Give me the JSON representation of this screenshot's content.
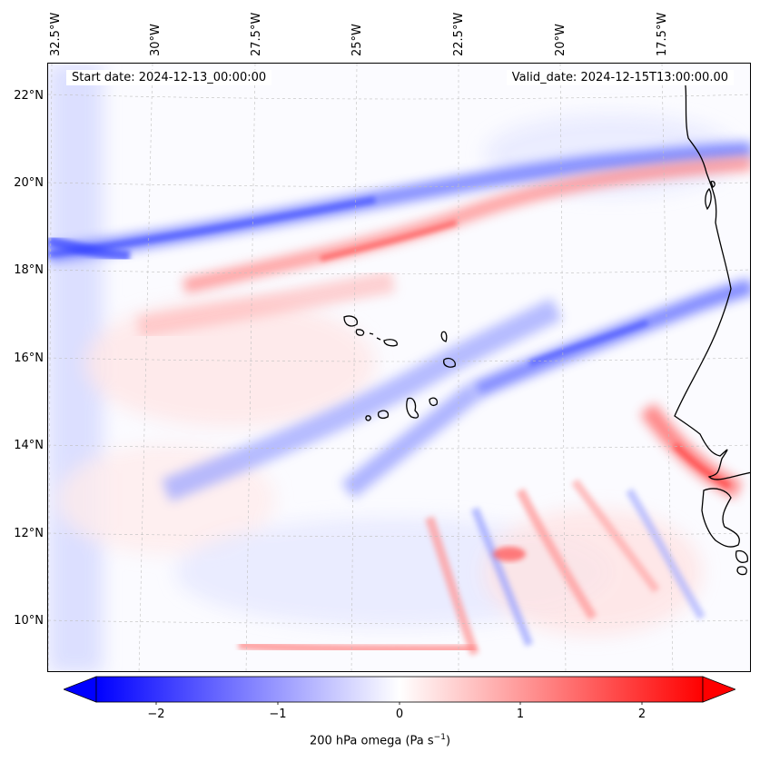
{
  "map": {
    "start_label": "Start date: 2024-12-13_00:00:00",
    "valid_label": "Valid_date: 2024-12-15T13:00:00.00",
    "lon_labels": [
      "32.5°W",
      "30°W",
      "27.5°W",
      "25°W",
      "22.5°W",
      "20°W",
      "17.5°W"
    ],
    "lat_labels": [
      "22°N",
      "20°N",
      "18°N",
      "16°N",
      "14°N",
      "12°N",
      "10°N"
    ],
    "colors": {
      "negative": "#0000ff",
      "zero": "#ffffff",
      "positive": "#ff0000",
      "coastline": "#000000"
    }
  },
  "colorbar": {
    "ticks": [
      "−2",
      "−1",
      "0",
      "1",
      "2"
    ],
    "label": "200 hPa omega (Pa s",
    "label_sup": "−1",
    "label_end": ")"
  }
}
